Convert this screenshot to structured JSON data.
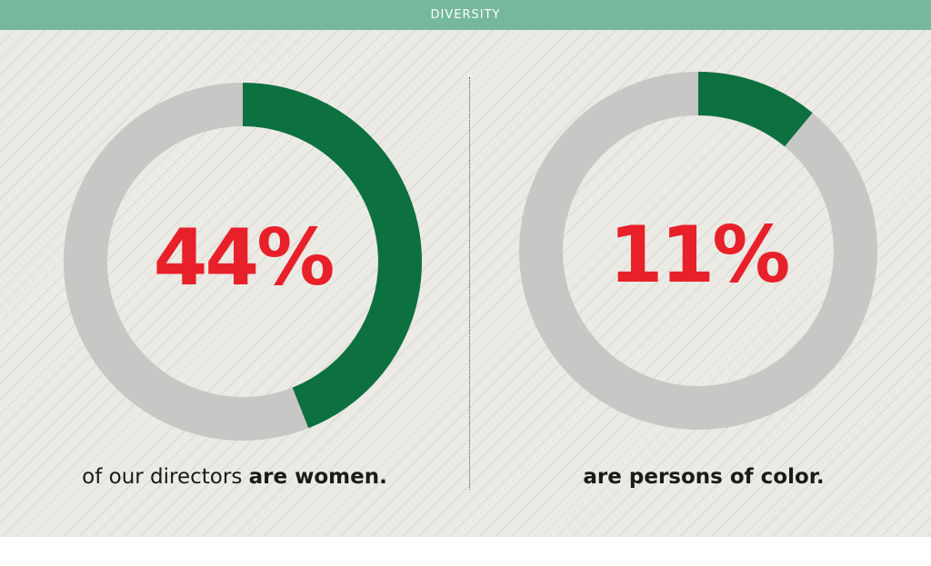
{
  "header": {
    "title": "DIVERSITY"
  },
  "colors": {
    "ring_fill": "#0d7040",
    "ring_track": "#c7c7c5",
    "percent_text": "#e8202a",
    "header_bg": "#76b89c"
  },
  "chart_data": [
    {
      "type": "pie",
      "variant": "donut",
      "value": 44,
      "unit": "%",
      "center_label": "44%",
      "caption_plain": "of our directors ",
      "caption_bold": "are women."
    },
    {
      "type": "pie",
      "variant": "donut",
      "value": 11,
      "unit": "%",
      "center_label": "11%",
      "caption_plain": "",
      "caption_bold": "are persons of color."
    }
  ]
}
